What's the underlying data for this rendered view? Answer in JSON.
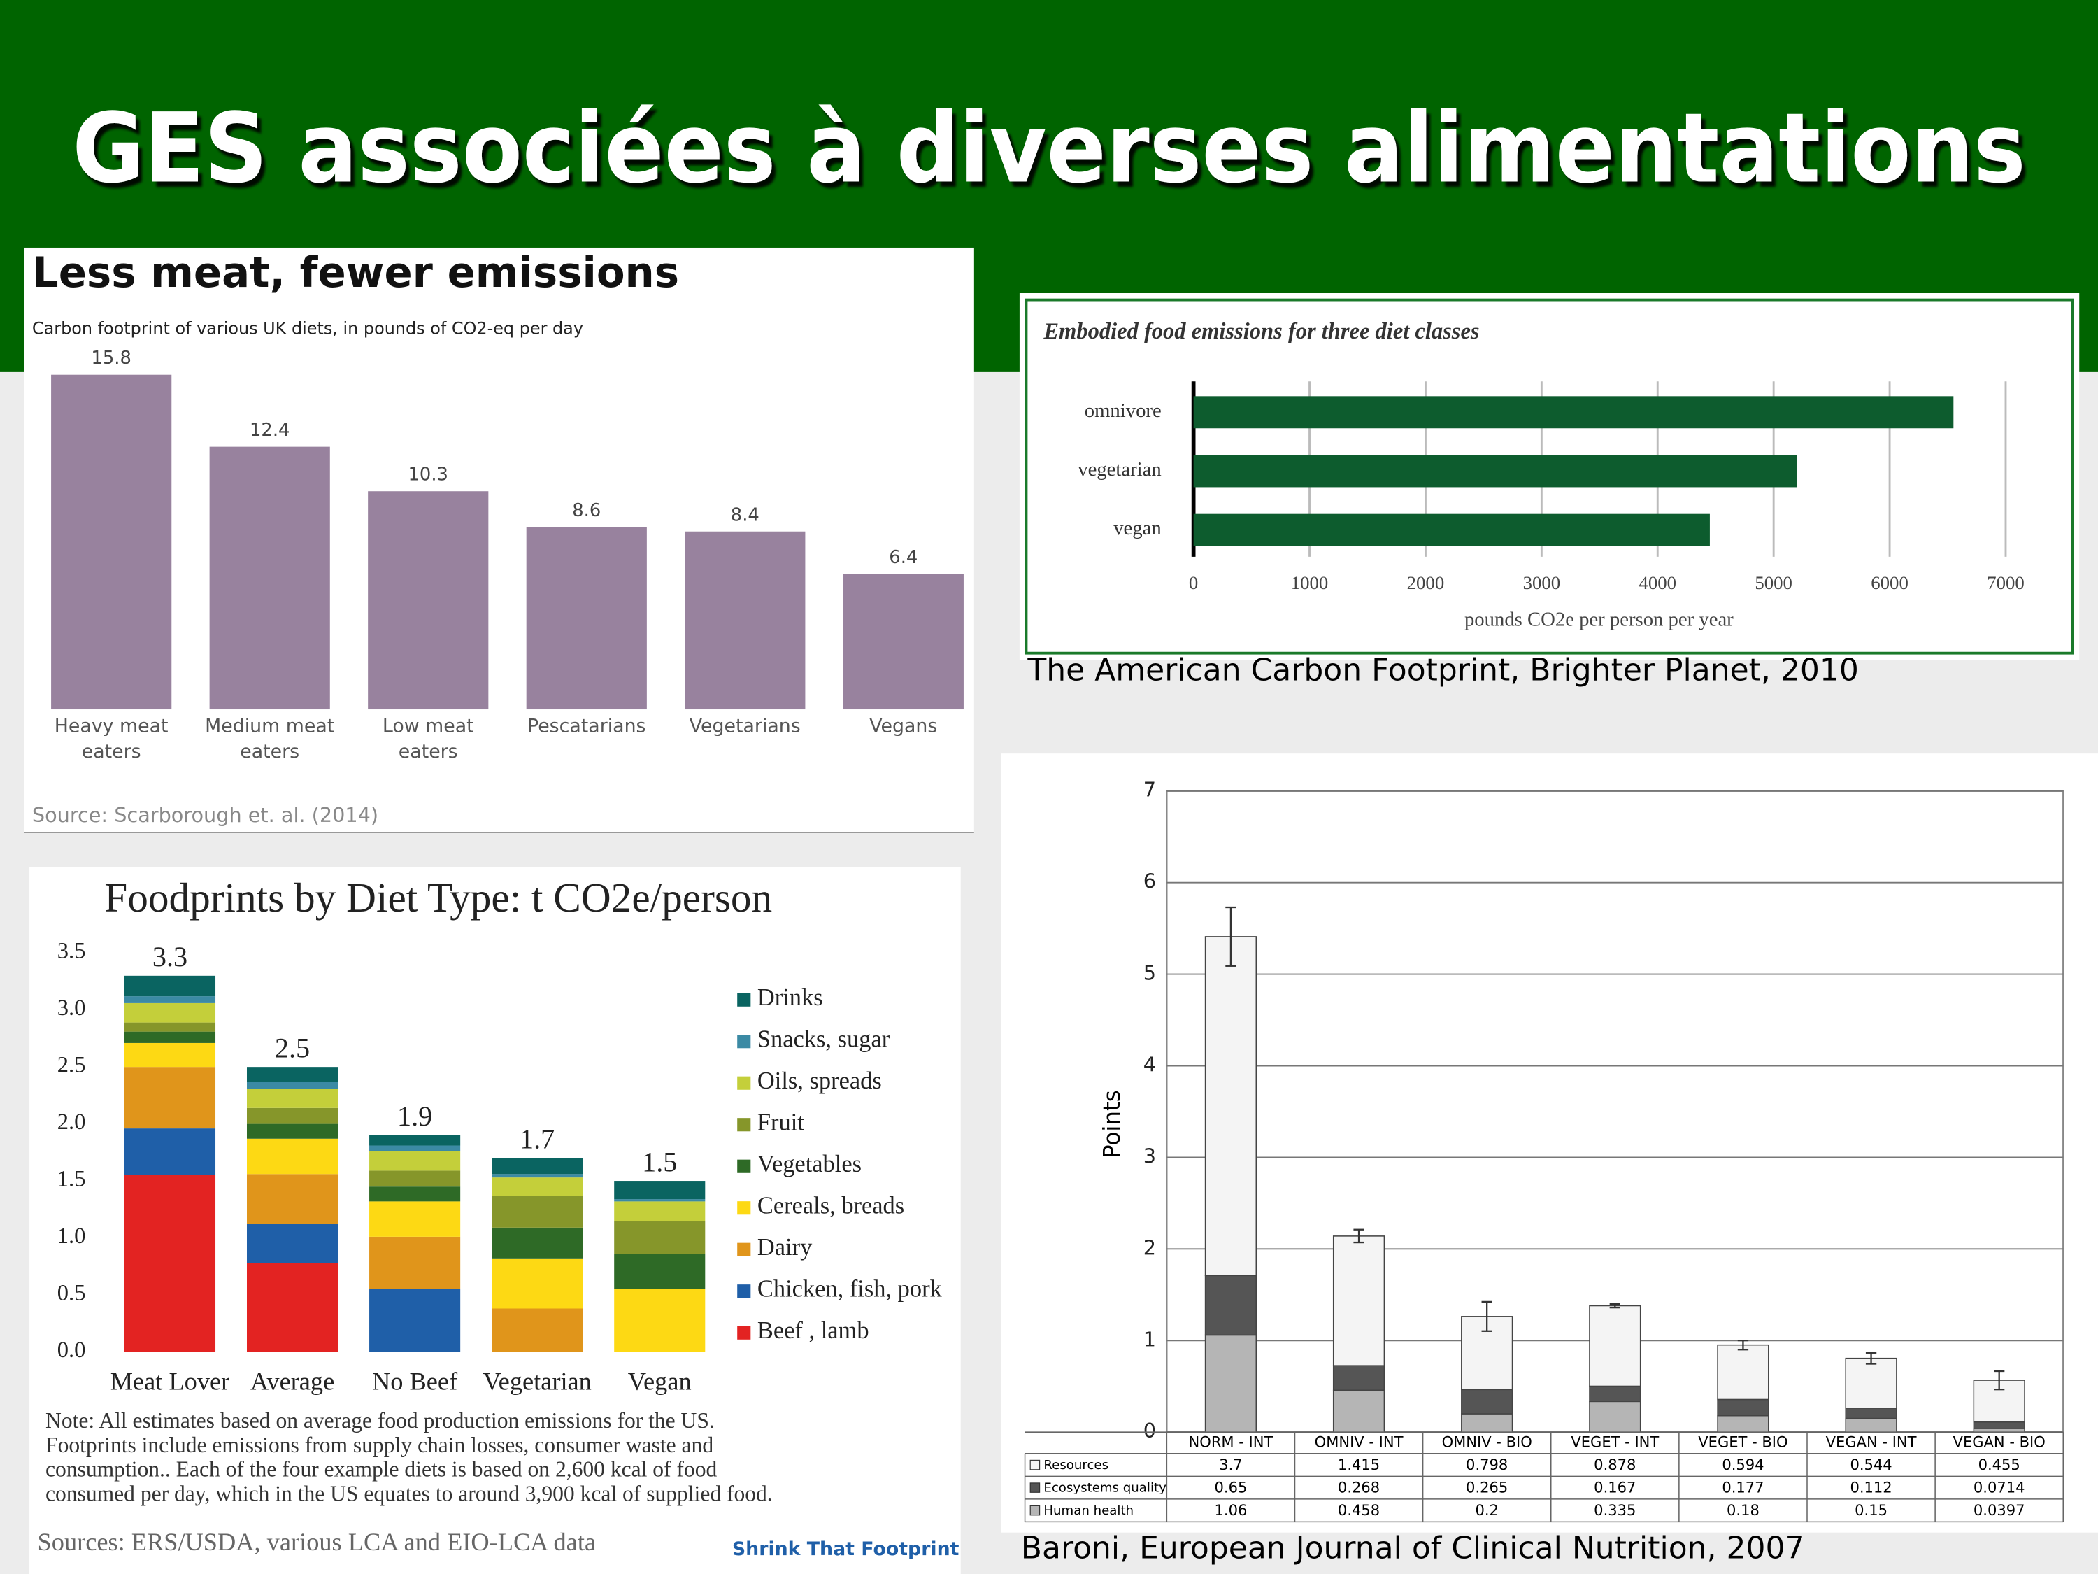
{
  "title": "GES associées à diverses alimentations",
  "chart_data": [
    {
      "type": "bar",
      "title": "Less meat, fewer emissions",
      "subtitle": "Carbon footprint of various UK diets, in pounds of CO2-eq per day",
      "categories": [
        "Heavy meat eaters",
        "Medium meat eaters",
        "Low meat eaters",
        "Pescatarians",
        "Vegetarians",
        "Vegans"
      ],
      "values": [
        15.8,
        12.4,
        10.3,
        8.6,
        8.4,
        6.4
      ],
      "color": "#98829e",
      "source": "Source: Scarborough et. al. (2014)"
    },
    {
      "type": "barh",
      "title": "Embodied food emissions for three diet classes",
      "categories": [
        "omnivore",
        "vegetarian",
        "vegan"
      ],
      "values": [
        6550,
        5200,
        4450
      ],
      "color": "#0d5c2e",
      "xlim": [
        0,
        7000
      ],
      "xticks": [
        0,
        1000,
        2000,
        3000,
        4000,
        5000,
        6000,
        7000
      ],
      "grid": true,
      "xlabel": "pounds CO2e per person per year",
      "source": "The American Carbon Footprint, Brighter Planet, 2010"
    },
    {
      "type": "stacked_bar",
      "title": "Foodprints by Diet Type: t CO2e/person",
      "categories": [
        "Meat Lover",
        "Average",
        "No Beef",
        "Vegetarian",
        "Vegan"
      ],
      "totals": [
        3.3,
        2.5,
        1.9,
        1.7,
        1.5
      ],
      "ylim": [
        0,
        3.5
      ],
      "yticks": [
        {
          "value": 0,
          "label": "0.0"
        },
        0.5,
        {
          "value": 1,
          "label": "1.0"
        },
        1.5,
        {
          "value": 2,
          "label": "2.0"
        },
        2.5,
        {
          "value": 3,
          "label": "3.0"
        },
        3.5
      ],
      "grid": false,
      "series": [
        {
          "name": "Beef , lamb",
          "color": "#e32322",
          "values": [
            1.55,
            0.78,
            0,
            0,
            0
          ]
        },
        {
          "name": "Chicken, fish, pork",
          "color": "#1f5fa8",
          "values": [
            0.41,
            0.34,
            0.55,
            0,
            0
          ]
        },
        {
          "name": "Dairy",
          "color": "#e0951b",
          "values": [
            0.54,
            0.44,
            0.46,
            0.38,
            0
          ]
        },
        {
          "name": "Cereals, breads",
          "color": "#fdd914",
          "values": [
            0.21,
            0.31,
            0.31,
            0.44,
            0.55
          ]
        },
        {
          "name": "Vegetables",
          "color": "#2e6a26",
          "values": [
            0.1,
            0.13,
            0.13,
            0.27,
            0.31
          ]
        },
        {
          "name": "Fruit",
          "color": "#86962a",
          "values": [
            0.08,
            0.14,
            0.14,
            0.28,
            0.29
          ]
        },
        {
          "name": "Oils, spreads",
          "color": "#c4cf3a",
          "values": [
            0.17,
            0.17,
            0.17,
            0.16,
            0.17
          ]
        },
        {
          "name": "Snacks, sugar",
          "color": "#3b8aa4",
          "values": [
            0.06,
            0.06,
            0.05,
            0.03,
            0.02
          ]
        },
        {
          "name": "Drinks",
          "color": "#0a6461",
          "values": [
            0.18,
            0.13,
            0.09,
            0.14,
            0.16
          ]
        }
      ],
      "note": [
        "Note: All estimates based on average food production emissions for the US.",
        "Footprints include emissions from supply chain losses, consumer waste and",
        "consumption..  Each of the four example diets is based on 2,600 kcal of food",
        "consumed per day, which in the US equates to around 3,900 kcal of supplied food."
      ],
      "source": "Sources:  ERS/USDA, various LCA and EIO-LCA data",
      "logo": "Shrink That Footprint"
    },
    {
      "type": "stacked_bar",
      "ylabel": "Points",
      "categories": [
        "NORM - INT",
        "OMNIV - INT",
        "OMNIV - BIO",
        "VEGET - INT",
        "VEGET - BIO",
        "VEGAN - INT",
        "VEGAN - BIO"
      ],
      "ylim": [
        0,
        7
      ],
      "yticks": [
        0,
        1,
        2,
        3,
        4,
        5,
        6,
        7
      ],
      "grid": true,
      "table": true,
      "series": [
        {
          "name": "Human health",
          "color": "#b5b5b5",
          "values": [
            1.06,
            0.458,
            0.2,
            0.335,
            0.18,
            0.15,
            0.0397
          ]
        },
        {
          "name": "Ecosystems quality",
          "color": "#555555",
          "values": [
            0.65,
            0.268,
            0.265,
            0.167,
            0.177,
            0.112,
            0.0714
          ]
        },
        {
          "name": "Resources",
          "color": "#f4f4f4",
          "values": [
            3.7,
            1.415,
            0.798,
            0.878,
            0.594,
            0.544,
            0.455
          ]
        }
      ],
      "errors": [
        0.32,
        0.07,
        0.16,
        0.02,
        0.05,
        0.06,
        0.1
      ],
      "source": "Baroni, European Journal of Clinical Nutrition, 2007"
    }
  ]
}
